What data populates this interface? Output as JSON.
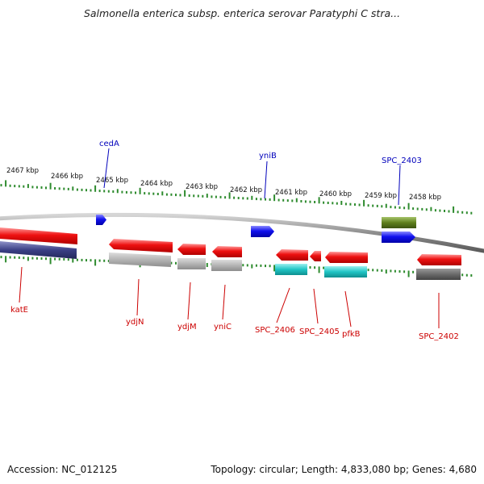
{
  "title": "Salmonella enterica subsp. enterica serovar Paratyphi C stra...",
  "footer": {
    "accession": "Accession: NC_012125",
    "summary": "Topology: circular; Length: 4,833,080 bp; Genes: 4,680"
  },
  "colors": {
    "backbone": "#8c8c8c",
    "tick": "#2e8b2e",
    "forward_gene": "#0000ee",
    "reverse_gene": "#ee0000",
    "forward_label": "#0000bb",
    "reverse_label": "#cc0000",
    "rna_feature": "#5f7f1c",
    "cds_gray": "#a8a8a8",
    "cds_dark_gray": "#6a6a6a",
    "cds_cyan": "#1fc4c4",
    "cds_navy": "#3a3f85"
  },
  "scale": {
    "unit": "kbp",
    "labels": [
      "2467 kbp",
      "2466 kbp",
      "2465 kbp",
      "2464 kbp",
      "2463 kbp",
      "2462 kbp",
      "2461 kbp",
      "2460 kbp",
      "2459 kbp",
      "2458 kbp"
    ]
  },
  "genes": [
    {
      "label": "katE",
      "strand": "reverse"
    },
    {
      "label": "cedA",
      "strand": "forward"
    },
    {
      "label": "ydjN",
      "strand": "reverse"
    },
    {
      "label": "ydjM",
      "strand": "reverse"
    },
    {
      "label": "yniC",
      "strand": "reverse"
    },
    {
      "label": "yniB",
      "strand": "forward"
    },
    {
      "label": "SPC_2406",
      "strand": "reverse"
    },
    {
      "label": "SPC_2405",
      "strand": "reverse"
    },
    {
      "label": "pfkB",
      "strand": "reverse"
    },
    {
      "label": "SPC_2403",
      "strand": "forward"
    },
    {
      "label": "SPC_2402",
      "strand": "reverse"
    }
  ]
}
